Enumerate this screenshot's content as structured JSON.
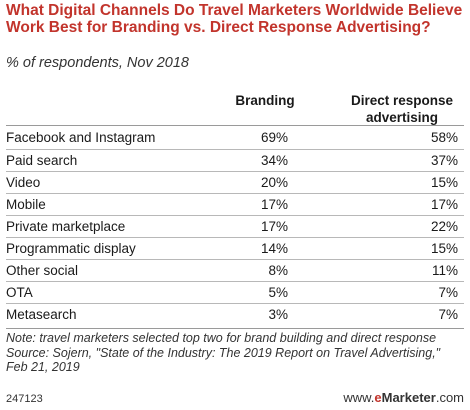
{
  "header": {
    "title": "What Digital Channels Do Travel Marketers Worldwide Believe Work Best for Branding vs. Direct Response Advertising?",
    "subtitle": "% of respondents, Nov 2018"
  },
  "columns": {
    "branding": "Branding",
    "direct": "Direct response advertising"
  },
  "chart_data": {
    "type": "table",
    "title": "What Digital Channels Do Travel Marketers Worldwide Believe Work Best for Branding vs. Direct Response Advertising?",
    "subtitle": "% of respondents, Nov 2018",
    "columns": [
      "Branding",
      "Direct response advertising"
    ],
    "rows": [
      {
        "label": "Facebook and Instagram",
        "branding": "69%",
        "direct": "58%"
      },
      {
        "label": "Paid search",
        "branding": "34%",
        "direct": "37%"
      },
      {
        "label": "Video",
        "branding": "20%",
        "direct": "15%"
      },
      {
        "label": "Mobile",
        "branding": "17%",
        "direct": "17%"
      },
      {
        "label": "Private marketplace",
        "branding": "17%",
        "direct": "22%"
      },
      {
        "label": "Programmatic display",
        "branding": "14%",
        "direct": "15%"
      },
      {
        "label": "Other social",
        "branding": "8%",
        "direct": "11%"
      },
      {
        "label": "OTA",
        "branding": "5%",
        "direct": "7%"
      },
      {
        "label": "Metasearch",
        "branding": "3%",
        "direct": "7%"
      }
    ]
  },
  "notes": {
    "note": "Note: travel marketers selected top two for brand building and direct response",
    "source": "Source: Sojern, \"State of the Industry: The 2019 Report on Travel Advertising,\" Feb 21, 2019"
  },
  "footer": {
    "chart_id": "247123",
    "brand_prefix": "www.",
    "brand_e": "e",
    "brand_main": "Marketer",
    "brand_suffix": ".com"
  },
  "colors": {
    "title": "#c2342c",
    "rule": "#9a9a9a"
  }
}
